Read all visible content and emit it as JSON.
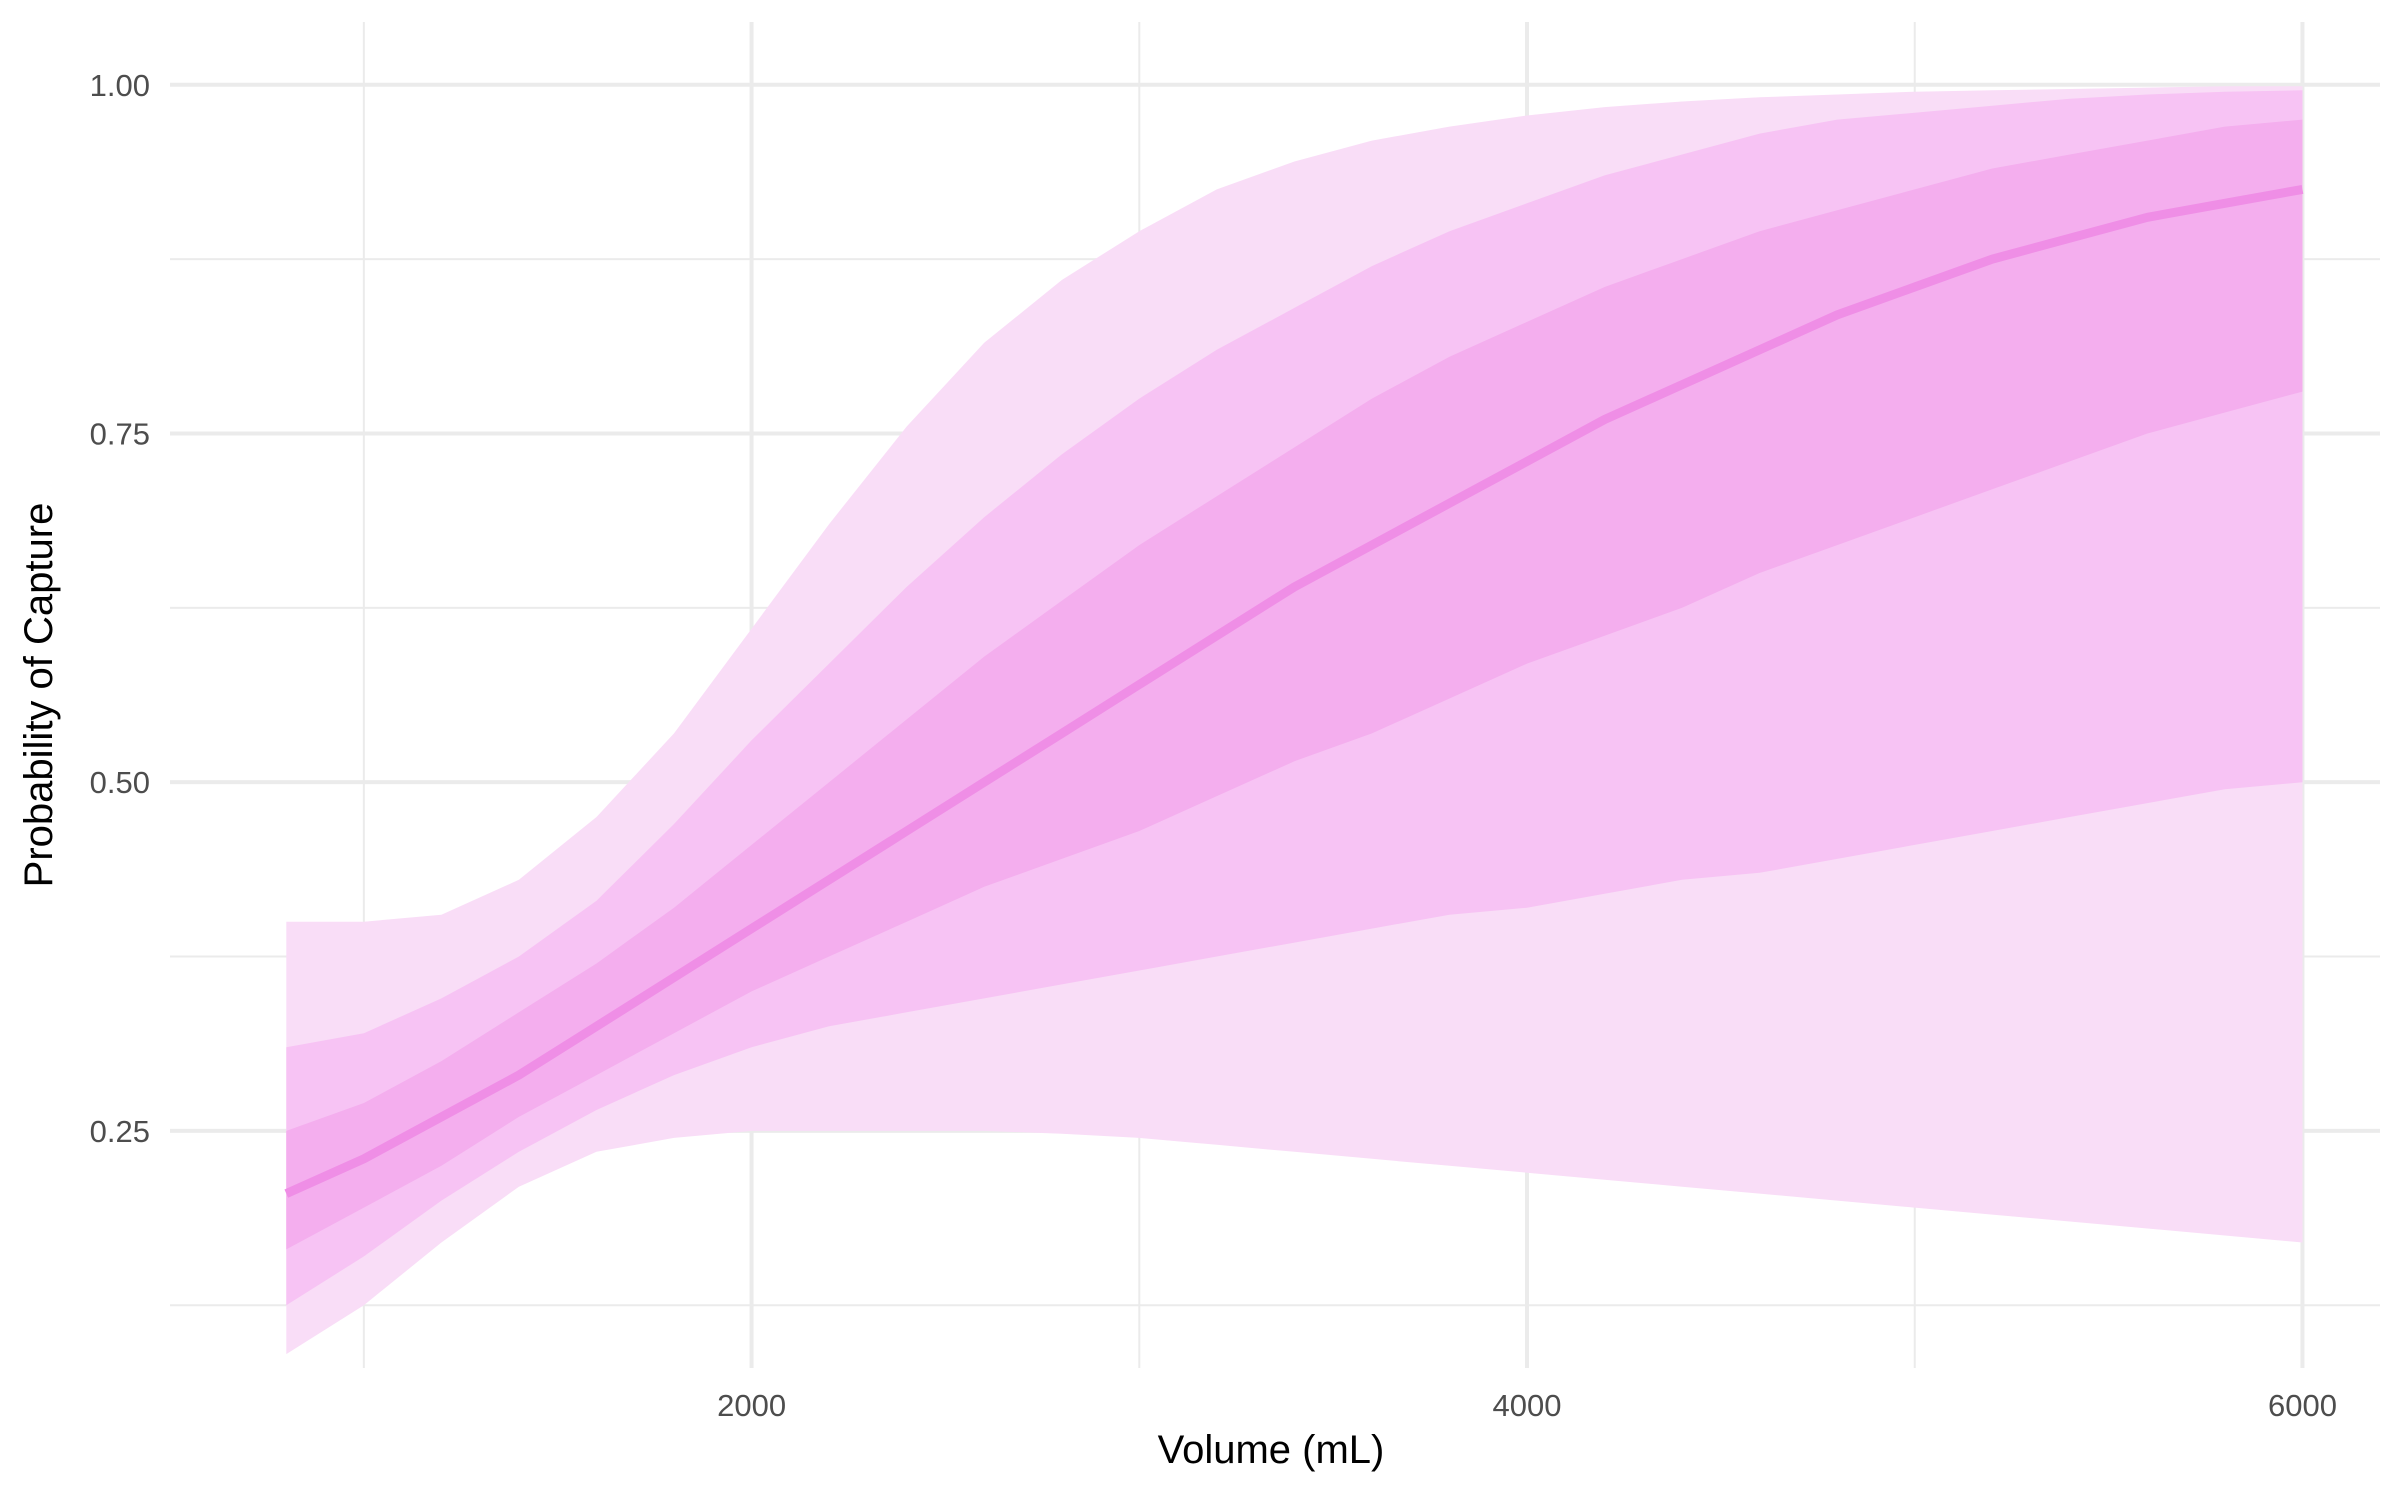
{
  "chart_data": {
    "type": "area",
    "title": "",
    "xlabel": "Volume (mL)",
    "ylabel": "Probability of Capture",
    "xlim": [
      500,
      6200
    ],
    "ylim": [
      0.08,
      1.045
    ],
    "x_ticks": [
      2000,
      4000,
      6000
    ],
    "x_tick_labels": [
      "2000",
      "4000",
      "6000"
    ],
    "x_minor_ticks": [
      1000,
      3000,
      5000
    ],
    "y_ticks": [
      0.25,
      0.5,
      0.75,
      1.0
    ],
    "y_tick_labels": [
      "0.25",
      "0.50",
      "0.75",
      "1.00"
    ],
    "y_minor_ticks": [
      0.125,
      0.375,
      0.625,
      0.875
    ],
    "grid": true,
    "legend": "none",
    "colors": {
      "band_outer": "#f9ddf7",
      "band_middle": "#f7c3f4",
      "band_inner": "#f4aeee",
      "line": "#ef8ee6"
    },
    "x": [
      800,
      1000,
      1200,
      1400,
      1600,
      1800,
      2000,
      2200,
      2400,
      2600,
      2800,
      3000,
      3200,
      3400,
      3600,
      3800,
      4000,
      4200,
      4400,
      4600,
      4800,
      5000,
      5200,
      5400,
      5600,
      5800,
      6000
    ],
    "series": [
      {
        "role": "median",
        "values": [
          0.205,
          0.23,
          0.26,
          0.29,
          0.325,
          0.36,
          0.395,
          0.43,
          0.465,
          0.5,
          0.535,
          0.57,
          0.605,
          0.64,
          0.67,
          0.7,
          0.73,
          0.76,
          0.785,
          0.81,
          0.835,
          0.855,
          0.875,
          0.89,
          0.905,
          0.915,
          0.925
        ]
      },
      {
        "role": "band_inner",
        "lower": [
          0.165,
          0.195,
          0.225,
          0.26,
          0.29,
          0.32,
          0.35,
          0.375,
          0.4,
          0.425,
          0.445,
          0.465,
          0.49,
          0.515,
          0.535,
          0.56,
          0.585,
          0.605,
          0.625,
          0.65,
          0.67,
          0.69,
          0.71,
          0.73,
          0.75,
          0.765,
          0.78
        ],
        "upper": [
          0.25,
          0.27,
          0.3,
          0.335,
          0.37,
          0.41,
          0.455,
          0.5,
          0.545,
          0.59,
          0.63,
          0.67,
          0.705,
          0.74,
          0.775,
          0.805,
          0.83,
          0.855,
          0.875,
          0.895,
          0.91,
          0.925,
          0.94,
          0.95,
          0.96,
          0.97,
          0.975
        ]
      },
      {
        "role": "band_middle",
        "lower": [
          0.125,
          0.16,
          0.2,
          0.235,
          0.265,
          0.29,
          0.31,
          0.325,
          0.335,
          0.345,
          0.355,
          0.365,
          0.375,
          0.385,
          0.395,
          0.405,
          0.41,
          0.42,
          0.43,
          0.435,
          0.445,
          0.455,
          0.465,
          0.475,
          0.485,
          0.495,
          0.5
        ],
        "upper": [
          0.31,
          0.32,
          0.345,
          0.375,
          0.415,
          0.47,
          0.53,
          0.585,
          0.64,
          0.69,
          0.735,
          0.775,
          0.81,
          0.84,
          0.87,
          0.895,
          0.915,
          0.935,
          0.95,
          0.965,
          0.975,
          0.98,
          0.985,
          0.99,
          0.993,
          0.995,
          0.996
        ]
      },
      {
        "role": "band_outer",
        "lower": [
          0.09,
          0.125,
          0.17,
          0.21,
          0.235,
          0.245,
          0.25,
          0.25,
          0.25,
          0.25,
          0.248,
          0.245,
          0.24,
          0.235,
          0.23,
          0.225,
          0.22,
          0.215,
          0.21,
          0.205,
          0.2,
          0.195,
          0.19,
          0.185,
          0.18,
          0.175,
          0.17
        ],
        "upper": [
          0.4,
          0.4,
          0.405,
          0.43,
          0.475,
          0.535,
          0.61,
          0.685,
          0.755,
          0.815,
          0.86,
          0.895,
          0.925,
          0.945,
          0.96,
          0.97,
          0.978,
          0.984,
          0.988,
          0.991,
          0.993,
          0.995,
          0.996,
          0.997,
          0.998,
          0.999,
          0.999
        ]
      }
    ]
  }
}
